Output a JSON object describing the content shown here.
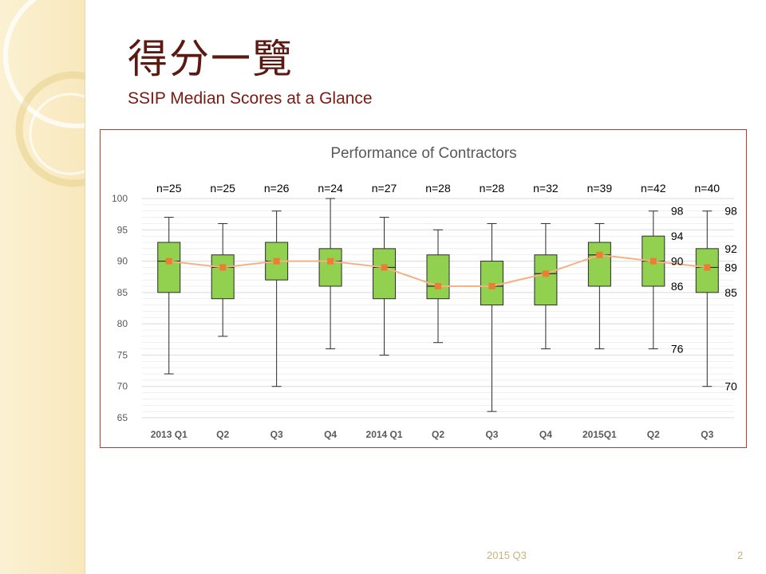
{
  "slide": {
    "title": "得分一覽",
    "subtitle": "SSIP Median Scores at a Glance",
    "footer_date": "2015 Q3",
    "page_number": "2"
  },
  "chart_data": {
    "type": "boxplot",
    "title": "Performance of Contractors",
    "categories": [
      "2013 Q1",
      "Q2",
      "Q3",
      "Q4",
      "2014 Q1",
      "Q2",
      "Q3",
      "Q4",
      "2015Q1",
      "Q2",
      "Q3"
    ],
    "counts": [
      "n=25",
      "n=25",
      "n=26",
      "n=24",
      "n=27",
      "n=28",
      "n=28",
      "n=32",
      "n=39",
      "n=42",
      "n=40"
    ],
    "ylim": [
      65,
      100
    ],
    "yticks": [
      65,
      70,
      75,
      80,
      85,
      90,
      95,
      100
    ],
    "grid": true,
    "boxes": [
      {
        "min": 72,
        "q1": 85,
        "median": 90,
        "q3": 93,
        "max": 97,
        "mean": 90
      },
      {
        "min": 78,
        "q1": 84,
        "median": 89,
        "q3": 91,
        "max": 96,
        "mean": 89
      },
      {
        "min": 70,
        "q1": 87,
        "median": 90,
        "q3": 93,
        "max": 98,
        "mean": 90
      },
      {
        "min": 76,
        "q1": 86,
        "median": 90,
        "q3": 92,
        "max": 100,
        "mean": 90
      },
      {
        "min": 75,
        "q1": 84,
        "median": 89,
        "q3": 92,
        "max": 97,
        "mean": 89
      },
      {
        "min": 77,
        "q1": 84,
        "median": 86,
        "q3": 91,
        "max": 95,
        "mean": 86
      },
      {
        "min": 66,
        "q1": 83,
        "median": 86,
        "q3": 90,
        "max": 96,
        "mean": 86
      },
      {
        "min": 76,
        "q1": 83,
        "median": 88,
        "q3": 91,
        "max": 96,
        "mean": 88
      },
      {
        "min": 76,
        "q1": 86,
        "median": 91,
        "q3": 93,
        "max": 96,
        "mean": 91
      },
      {
        "min": 76,
        "q1": 86,
        "median": 90,
        "q3": 94,
        "max": 98,
        "mean": 90
      },
      {
        "min": 70,
        "q1": 85,
        "median": 89,
        "q3": 92,
        "max": 98,
        "mean": 89
      }
    ],
    "annotations": [
      {
        "box": 9,
        "values": [
          98,
          94,
          90,
          86,
          76
        ]
      },
      {
        "box": 10,
        "values": [
          98,
          92,
          89,
          85,
          70
        ]
      }
    ],
    "colors": {
      "box_fill": "#92d050",
      "box_stroke": "#2b2b2b",
      "mean_line": "#f4b183",
      "mean_marker": "#ed7d31",
      "grid": "#e6e6e6",
      "frame": "#c0392b"
    }
  }
}
